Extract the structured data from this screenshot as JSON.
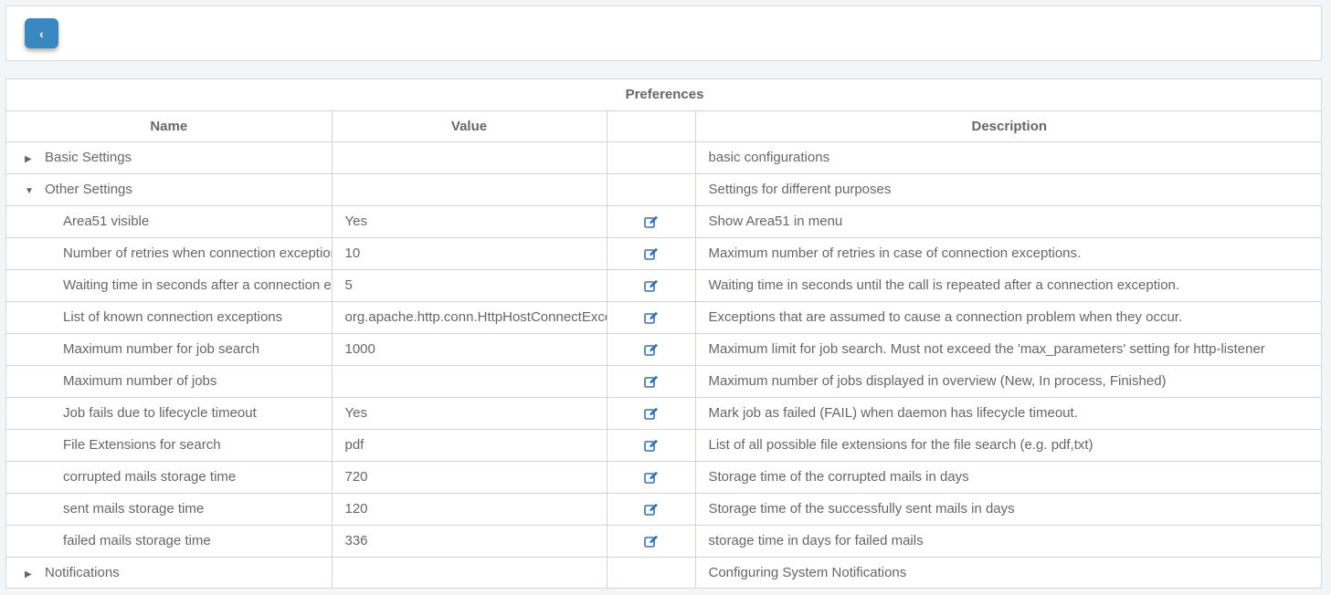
{
  "toolbar": {
    "back_icon": "chevron-left-icon",
    "back_label": "‹"
  },
  "table": {
    "title": "Preferences",
    "columns": [
      "Name",
      "Value",
      "",
      "Description"
    ],
    "rows": [
      {
        "type": "group",
        "expanded": false,
        "name": "Basic Settings",
        "value": "",
        "description": "basic configurations"
      },
      {
        "type": "group",
        "expanded": true,
        "name": "Other Settings",
        "value": "",
        "description": "Settings for different purposes"
      },
      {
        "type": "child",
        "name": "Area51 visible",
        "value": "Yes",
        "description": "Show Area51 in menu"
      },
      {
        "type": "child",
        "name": "Number of retries when connection exceptions",
        "value": "10",
        "description": "Maximum number of retries in case of connection exceptions."
      },
      {
        "type": "child",
        "name": "Waiting time in seconds after a connection exception",
        "value": "5",
        "description": "Waiting time in seconds until the call is repeated after a connection exception."
      },
      {
        "type": "child",
        "name": "List of known connection exceptions",
        "value": "org.apache.http.conn.HttpHostConnectException",
        "description": "Exceptions that are assumed to cause a connection problem when they occur."
      },
      {
        "type": "child",
        "name": "Maximum number for job search",
        "value": "1000",
        "description": "Maximum limit for job search. Must not exceed the 'max_parameters' setting for http-listener"
      },
      {
        "type": "child",
        "name": "Maximum number of jobs",
        "value": "",
        "description": "Maximum number of jobs displayed in overview (New, In process, Finished)"
      },
      {
        "type": "child",
        "name": "Job fails due to lifecycle timeout",
        "value": "Yes",
        "description": "Mark job as failed (FAIL) when daemon has lifecycle timeout."
      },
      {
        "type": "child",
        "name": "File Extensions for search",
        "value": "pdf",
        "description": "List of all possible file extensions for the file search (e.g. pdf,txt)"
      },
      {
        "type": "child",
        "name": "corrupted mails storage time",
        "value": "720",
        "description": "Storage time of the corrupted mails in days"
      },
      {
        "type": "child",
        "name": "sent mails storage time",
        "value": "120",
        "description": "Storage time of the successfully sent mails in days"
      },
      {
        "type": "child",
        "name": "failed mails storage time",
        "value": "336",
        "description": "storage time in days for failed mails"
      },
      {
        "type": "group",
        "expanded": false,
        "name": "Notifications",
        "value": "",
        "description": "Configuring System Notifications"
      }
    ]
  },
  "colors": {
    "accent": "#3a87c1",
    "edit_icon": "#3a70a8",
    "text": "#666666"
  }
}
